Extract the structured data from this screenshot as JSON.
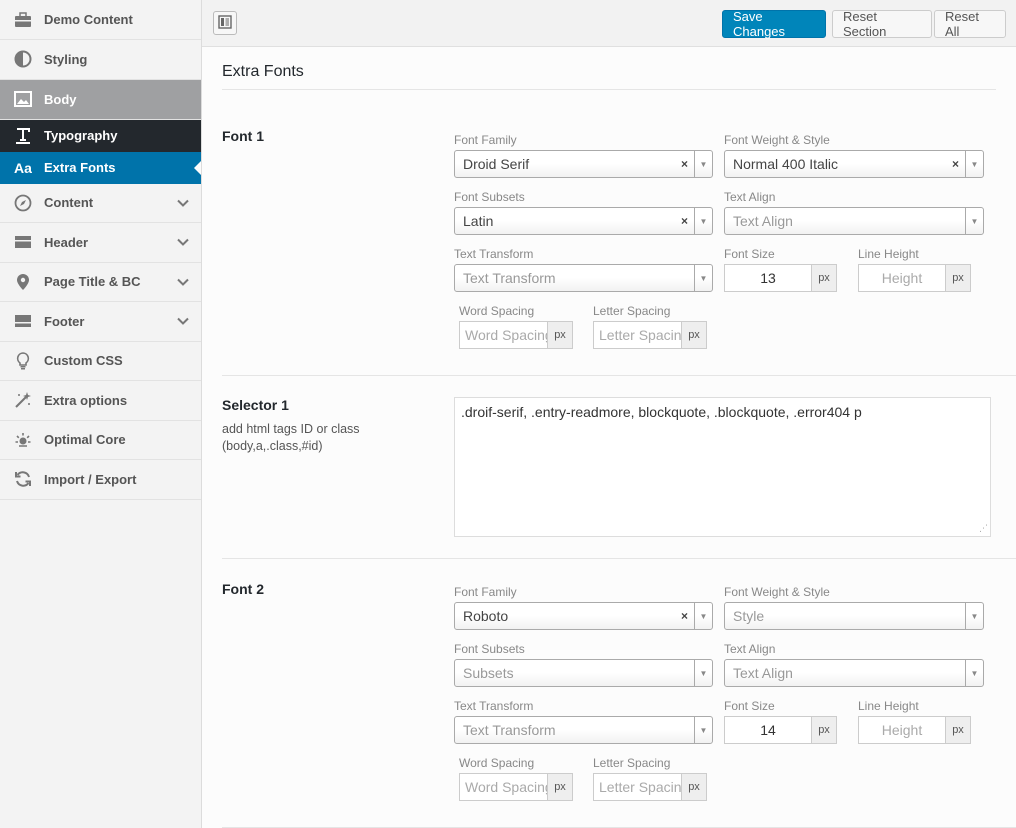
{
  "sidebar": {
    "items": [
      {
        "label": "Demo Content",
        "icon": "briefcase-icon"
      },
      {
        "label": "Styling",
        "icon": "contrast-icon"
      },
      {
        "label": "Body",
        "icon": "image-icon"
      },
      {
        "label": "Typography",
        "icon": "text-icon"
      },
      {
        "label": "Extra Fonts",
        "icon": "Aa"
      },
      {
        "label": "Content",
        "icon": "compass-icon"
      },
      {
        "label": "Header",
        "icon": "header-icon"
      },
      {
        "label": "Page Title & BC",
        "icon": "location-icon"
      },
      {
        "label": "Footer",
        "icon": "footer-icon"
      },
      {
        "label": "Custom CSS",
        "icon": "lightbulb-icon"
      },
      {
        "label": "Extra options",
        "icon": "magic-wand-icon"
      },
      {
        "label": "Optimal Core",
        "icon": "sun-icon"
      },
      {
        "label": "Import / Export",
        "icon": "refresh-icon"
      }
    ]
  },
  "toolbar": {
    "save_label": "Save Changes",
    "reset_section_label": "Reset Section",
    "reset_all_label": "Reset All"
  },
  "section": {
    "title": "Extra Fonts"
  },
  "labels": {
    "font_family": "Font Family",
    "font_weight_style": "Font Weight & Style",
    "font_subsets": "Font Subsets",
    "text_align": "Text Align",
    "text_transform": "Text Transform",
    "font_size": "Font Size",
    "line_height": "Line Height",
    "word_spacing": "Word Spacing",
    "letter_spacing": "Letter Spacing",
    "unit": "px"
  },
  "font1": {
    "title": "Font 1",
    "family": "Droid Serif",
    "weight_style": "Normal 400 Italic",
    "subsets": "Latin",
    "text_align_placeholder": "Text Align",
    "text_transform_placeholder": "Text Transform",
    "font_size": "13",
    "line_height_placeholder": "Height",
    "word_spacing_placeholder": "Word Spacing",
    "letter_spacing_placeholder": "Letter Spacing"
  },
  "selector1": {
    "title": "Selector 1",
    "desc": "add html tags ID or class (body,a,.class,#id)",
    "value": ".droif-serif, .entry-readmore, blockquote, .blockquote, .error404 p"
  },
  "font2": {
    "title": "Font 2",
    "family": "Roboto",
    "weight_style_placeholder": "Style",
    "subsets_placeholder": "Subsets",
    "text_align_placeholder": "Text Align",
    "text_transform_placeholder": "Text Transform",
    "font_size": "14",
    "line_height_placeholder": "Height",
    "word_spacing_placeholder": "Word Spacing",
    "letter_spacing_placeholder": "Letter Spacing"
  },
  "colors": {
    "accent": "#0085ba",
    "sidebar_dark": "#23282d",
    "sidebar_active": "#0073aa"
  }
}
